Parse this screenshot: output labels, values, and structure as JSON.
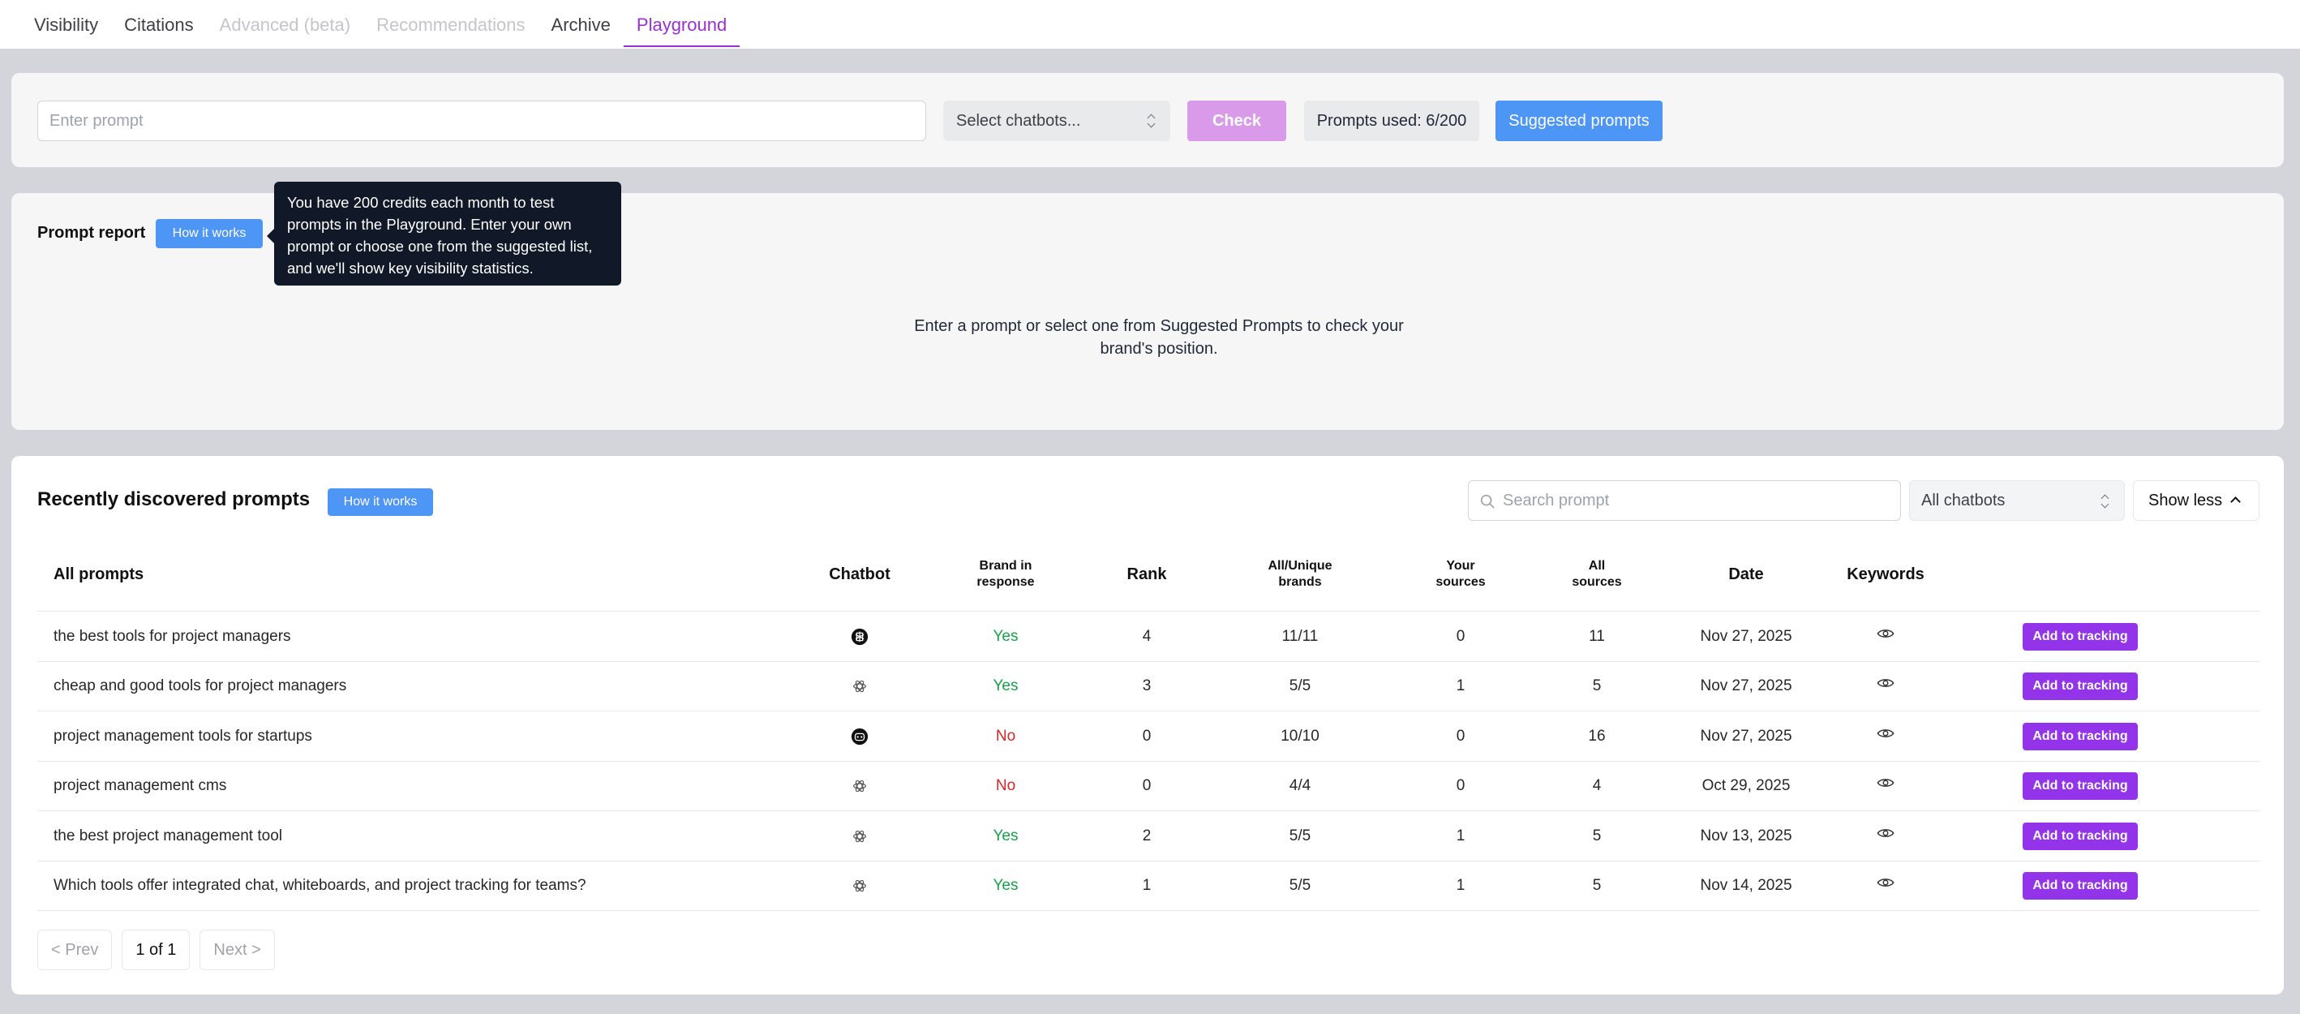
{
  "tabs": [
    {
      "label": "Visibility",
      "state": "normal"
    },
    {
      "label": "Citations",
      "state": "normal"
    },
    {
      "label": "Advanced (beta)",
      "state": "disabled"
    },
    {
      "label": "Recommendations",
      "state": "disabled"
    },
    {
      "label": "Archive",
      "state": "normal"
    },
    {
      "label": "Playground",
      "state": "active"
    }
  ],
  "check_bar": {
    "prompt_placeholder": "Enter prompt",
    "chatbots_select": "Select chatbots...",
    "check_label": "Check",
    "prompts_used": "Prompts used: 6/200",
    "suggested_label": "Suggested prompts"
  },
  "report": {
    "title": "Prompt report",
    "how_label": "How it works",
    "tooltip": "You have 200 credits each month to test prompts in the Playground. Enter your own prompt or choose one from the suggested list, and we'll show key visibility statistics.",
    "empty_message": "Enter a prompt or select one from Suggested Prompts to check your brand's position."
  },
  "recent": {
    "title": "Recently discovered prompts",
    "how_label": "How it works",
    "search_placeholder": "Search prompt",
    "chatbots_filter": "All chatbots",
    "show_less": "Show less",
    "columns": {
      "prompt": "All prompts",
      "chatbot": "Chatbot",
      "brand": "Brand in response",
      "rank": "Rank",
      "brands": "All/Unique brands",
      "your_sources": "Your sources",
      "all_sources": "All sources",
      "date": "Date",
      "keywords": "Keywords"
    },
    "add_label": "Add to tracking",
    "rows": [
      {
        "prompt": "the best tools for project managers",
        "chatbot_icon": "perplexity-icon",
        "brand": "Yes",
        "rank": "4",
        "brands": "11/11",
        "your_sources": "0",
        "all_sources": "11",
        "date": "Nov 27, 2025"
      },
      {
        "prompt": "cheap and good tools for project managers",
        "chatbot_icon": "openai-icon",
        "brand": "Yes",
        "rank": "3",
        "brands": "5/5",
        "your_sources": "1",
        "all_sources": "5",
        "date": "Nov 27, 2025"
      },
      {
        "prompt": "project management tools for startups",
        "chatbot_icon": "copilot-icon",
        "brand": "No",
        "rank": "0",
        "brands": "10/10",
        "your_sources": "0",
        "all_sources": "16",
        "date": "Nov 27, 2025"
      },
      {
        "prompt": "project management cms",
        "chatbot_icon": "openai-icon",
        "brand": "No",
        "rank": "0",
        "brands": "4/4",
        "your_sources": "0",
        "all_sources": "4",
        "date": "Oct 29, 2025"
      },
      {
        "prompt": "the best project management tool",
        "chatbot_icon": "openai-icon",
        "brand": "Yes",
        "rank": "2",
        "brands": "5/5",
        "your_sources": "1",
        "all_sources": "5",
        "date": "Nov 13, 2025"
      },
      {
        "prompt": "Which tools offer integrated chat, whiteboards, and project tracking for teams?",
        "chatbot_icon": "openai-icon",
        "brand": "Yes",
        "rank": "1",
        "brands": "5/5",
        "your_sources": "1",
        "all_sources": "5",
        "date": "Nov 14, 2025"
      }
    ],
    "pagination": {
      "prev": "< Prev",
      "page": "1 of 1",
      "next": "Next >"
    }
  }
}
